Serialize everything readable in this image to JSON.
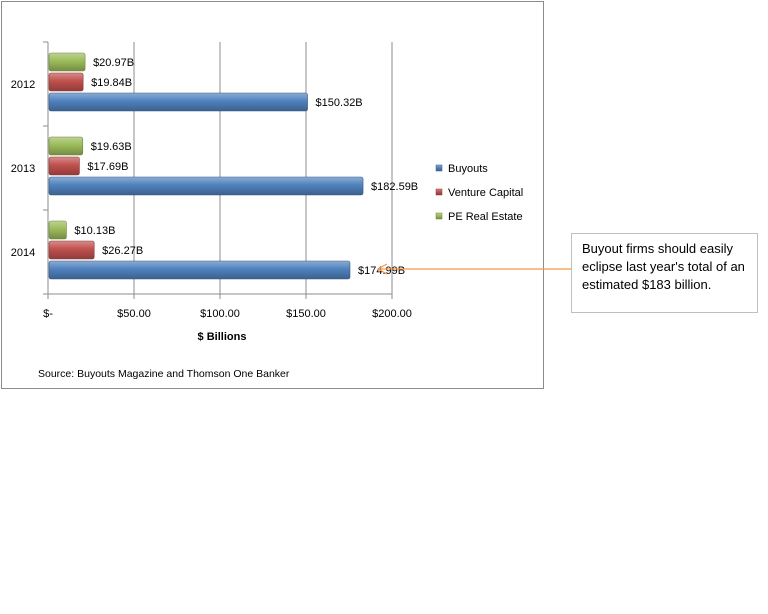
{
  "chart_data": {
    "type": "bar",
    "orientation": "horizontal",
    "categories": [
      "2012",
      "2013",
      "2014"
    ],
    "series": [
      {
        "name": "PE Real  Estate",
        "color": "#9bbb59",
        "values": [
          20.97,
          19.63,
          10.13
        ],
        "labels": [
          "$20.97B",
          "$19.63B",
          "$10.13B"
        ]
      },
      {
        "name": "Venture Capital",
        "color": "#c0504d",
        "values": [
          19.84,
          17.69,
          26.27
        ],
        "labels": [
          "$19.84B",
          "$17.69B",
          "$26.27B"
        ]
      },
      {
        "name": "Buyouts",
        "color": "#4f81bd",
        "values": [
          150.32,
          182.59,
          174.99
        ],
        "labels": [
          "$150.32B",
          "$182.59B",
          "$174.99B"
        ]
      }
    ],
    "xlabel": "$ Billions",
    "xlim": [
      0,
      200
    ],
    "xticks": [
      0,
      50,
      100,
      150,
      200
    ],
    "xtick_labels": [
      "$-",
      "$50.00",
      "$100.00",
      "$150.00",
      "$200.00"
    ],
    "grid": "vertical major gridlines",
    "legend": "right"
  },
  "source": "Source: Buyouts  Magazine and Thomson One Banker",
  "callout": {
    "text": "Buyout firms should easily eclipse last year's total of an estimated $183 billion.",
    "arrow_color": "#f79646"
  }
}
